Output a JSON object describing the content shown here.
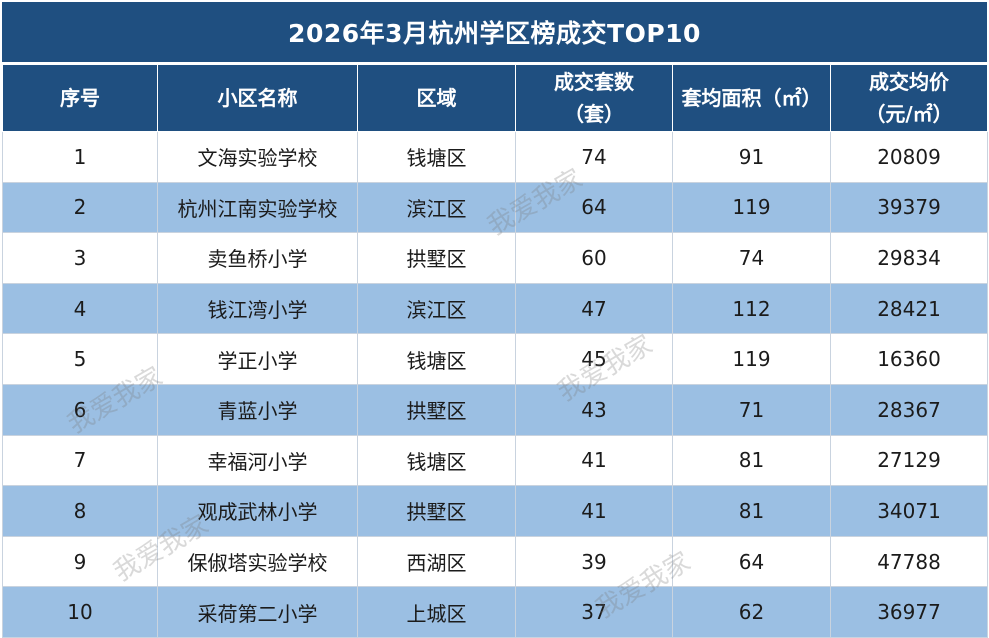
{
  "title": "2026年3月杭州学区榜成交TOP10",
  "headers": [
    {
      "line1": "序号",
      "line2": ""
    },
    {
      "line1": "小区名称",
      "line2": ""
    },
    {
      "line1": "区域",
      "line2": ""
    },
    {
      "line1": "成交套数",
      "line2": "（套）"
    },
    {
      "line1": "套均面积（㎡）",
      "line2": ""
    },
    {
      "line1": "成交均价",
      "line2": "（元/㎡）"
    }
  ],
  "rows": [
    [
      "1",
      "文海实验学校",
      "钱塘区",
      "74",
      "91",
      "20809"
    ],
    [
      "2",
      "杭州江南实验学校",
      "滨江区",
      "64",
      "119",
      "39379"
    ],
    [
      "3",
      "卖鱼桥小学",
      "拱墅区",
      "60",
      "74",
      "29834"
    ],
    [
      "4",
      "钱江湾小学",
      "滨江区",
      "47",
      "112",
      "28421"
    ],
    [
      "5",
      "学正小学",
      "钱塘区",
      "45",
      "119",
      "16360"
    ],
    [
      "6",
      "青蓝小学",
      "拱墅区",
      "43",
      "71",
      "28367"
    ],
    [
      "7",
      "幸福河小学",
      "钱塘区",
      "41",
      "81",
      "27129"
    ],
    [
      "8",
      "观成武林小学",
      "拱墅区",
      "41",
      "81",
      "34071"
    ],
    [
      "9",
      "保俶塔实验学校",
      "西湖区",
      "39",
      "64",
      "47788"
    ],
    [
      "10",
      "采荷第二小学",
      "上城区",
      "37",
      "62",
      "36977"
    ]
  ],
  "watermark": "我爱我家",
  "colors": {
    "header_bg": "#1f4f80",
    "stripe": "#9bbfe3"
  }
}
